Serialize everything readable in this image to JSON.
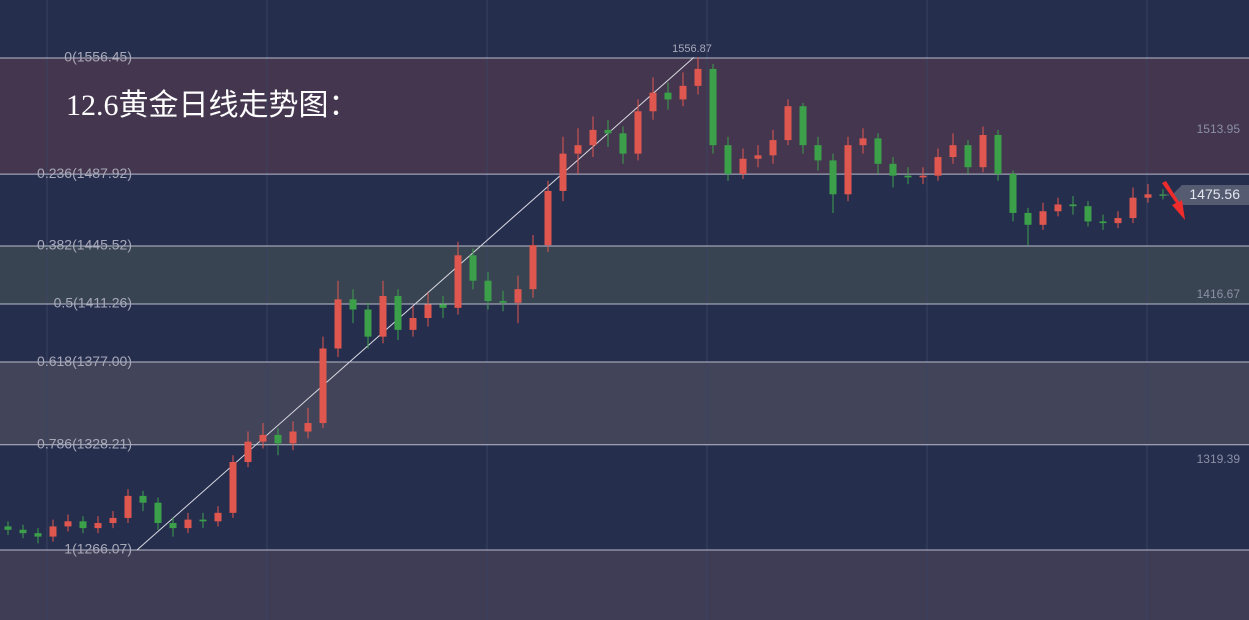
{
  "chart_data": {
    "type": "candlestick",
    "title": "12.6黄金日线走势图：",
    "ylim": [
      1224.76,
      1590.68
    ],
    "yticks": [
      1319.39,
      1416.67,
      1513.95
    ],
    "last_price": 1475.56,
    "up_color": "#e0574f",
    "down_color": "#3ca04a",
    "levels": [
      {
        "value": 1556.45,
        "label": "0(1556.45)"
      },
      {
        "value": 1487.92,
        "label": "0.236(1487.92)"
      },
      {
        "value": 1445.52,
        "label": "0.382(1445.52)"
      },
      {
        "value": 1411.26,
        "label": "0.5(1411.26)"
      },
      {
        "value": 1377.0,
        "label": "0.618(1377.00)"
      },
      {
        "value": 1328.21,
        "label": "0.786(1328.21)"
      },
      {
        "value": 1266.07,
        "label": "1(1266.07)"
      }
    ],
    "open": [
      1280,
      1278,
      1276,
      1274,
      1280,
      1283,
      1279,
      1282,
      1285,
      1298,
      1294,
      1282,
      1279,
      1284,
      1283,
      1288,
      1318,
      1330,
      1334,
      1329,
      1336,
      1341,
      1385,
      1414,
      1408,
      1392,
      1416,
      1396,
      1403,
      1411,
      1409,
      1440,
      1425,
      1413,
      1412,
      1420,
      1446,
      1478,
      1500,
      1505,
      1514,
      1512,
      1500,
      1525,
      1536,
      1532,
      1540,
      1550,
      1505,
      1488,
      1497,
      1499,
      1508,
      1528,
      1505,
      1496,
      1476,
      1505,
      1509,
      1494,
      1487,
      1486,
      1487,
      1498,
      1505,
      1492,
      1511,
      1488,
      1465,
      1458,
      1466,
      1470,
      1469,
      1460,
      1459,
      1462,
      1474,
      1476
    ],
    "high": [
      1283,
      1281,
      1279,
      1284,
      1287,
      1286,
      1286,
      1289,
      1302,
      1301,
      1297,
      1285,
      1288,
      1288,
      1292,
      1322,
      1336,
      1341,
      1338,
      1342,
      1350,
      1392,
      1425,
      1420,
      1412,
      1425,
      1420,
      1410,
      1418,
      1416,
      1448,
      1444,
      1430,
      1419,
      1428,
      1452,
      1484,
      1510,
      1515,
      1522,
      1520,
      1516,
      1532,
      1545,
      1542,
      1548,
      1556.87,
      1553,
      1510,
      1503,
      1505,
      1514,
      1532,
      1530,
      1510,
      1500,
      1510,
      1515,
      1512,
      1498,
      1492,
      1492,
      1503,
      1512,
      1508,
      1516,
      1514,
      1490,
      1468,
      1471,
      1474,
      1475,
      1472,
      1464,
      1466,
      1480,
      1482,
      1479
    ],
    "low": [
      1275,
      1273,
      1270,
      1271,
      1277,
      1276,
      1276,
      1279,
      1282,
      1289,
      1278,
      1274,
      1276,
      1279,
      1280,
      1285,
      1315,
      1326,
      1322,
      1325,
      1332,
      1338,
      1380,
      1400,
      1385,
      1388,
      1390,
      1392,
      1398,
      1403,
      1405,
      1420,
      1408,
      1407,
      1400,
      1415,
      1442,
      1472,
      1488,
      1498,
      1504,
      1494,
      1496,
      1520,
      1526,
      1528,
      1535,
      1500,
      1484,
      1485,
      1492,
      1494,
      1505,
      1500,
      1490,
      1465,
      1472,
      1500,
      1488,
      1480,
      1482,
      1482,
      1484,
      1494,
      1488,
      1489,
      1484,
      1460,
      1446,
      1455,
      1463,
      1464,
      1457,
      1455,
      1456,
      1459,
      1471,
      1473
    ],
    "close": [
      1278,
      1276,
      1274,
      1280,
      1283,
      1279,
      1282,
      1285,
      1298,
      1294,
      1282,
      1279,
      1284,
      1283,
      1288,
      1318,
      1330,
      1334,
      1329,
      1336,
      1341,
      1385,
      1414,
      1408,
      1392,
      1416,
      1396,
      1403,
      1411,
      1409,
      1440,
      1425,
      1413,
      1412,
      1420,
      1446,
      1478,
      1500,
      1505,
      1514,
      1512,
      1500,
      1525,
      1536,
      1532,
      1540,
      1550,
      1505,
      1488,
      1497,
      1499,
      1508,
      1528,
      1505,
      1496,
      1476,
      1505,
      1509,
      1494,
      1487,
      1486,
      1487,
      1498,
      1505,
      1492,
      1511,
      1488,
      1465,
      1458,
      1466,
      1470,
      1469,
      1460,
      1459,
      1462,
      1474,
      1476,
      1476
    ]
  }
}
